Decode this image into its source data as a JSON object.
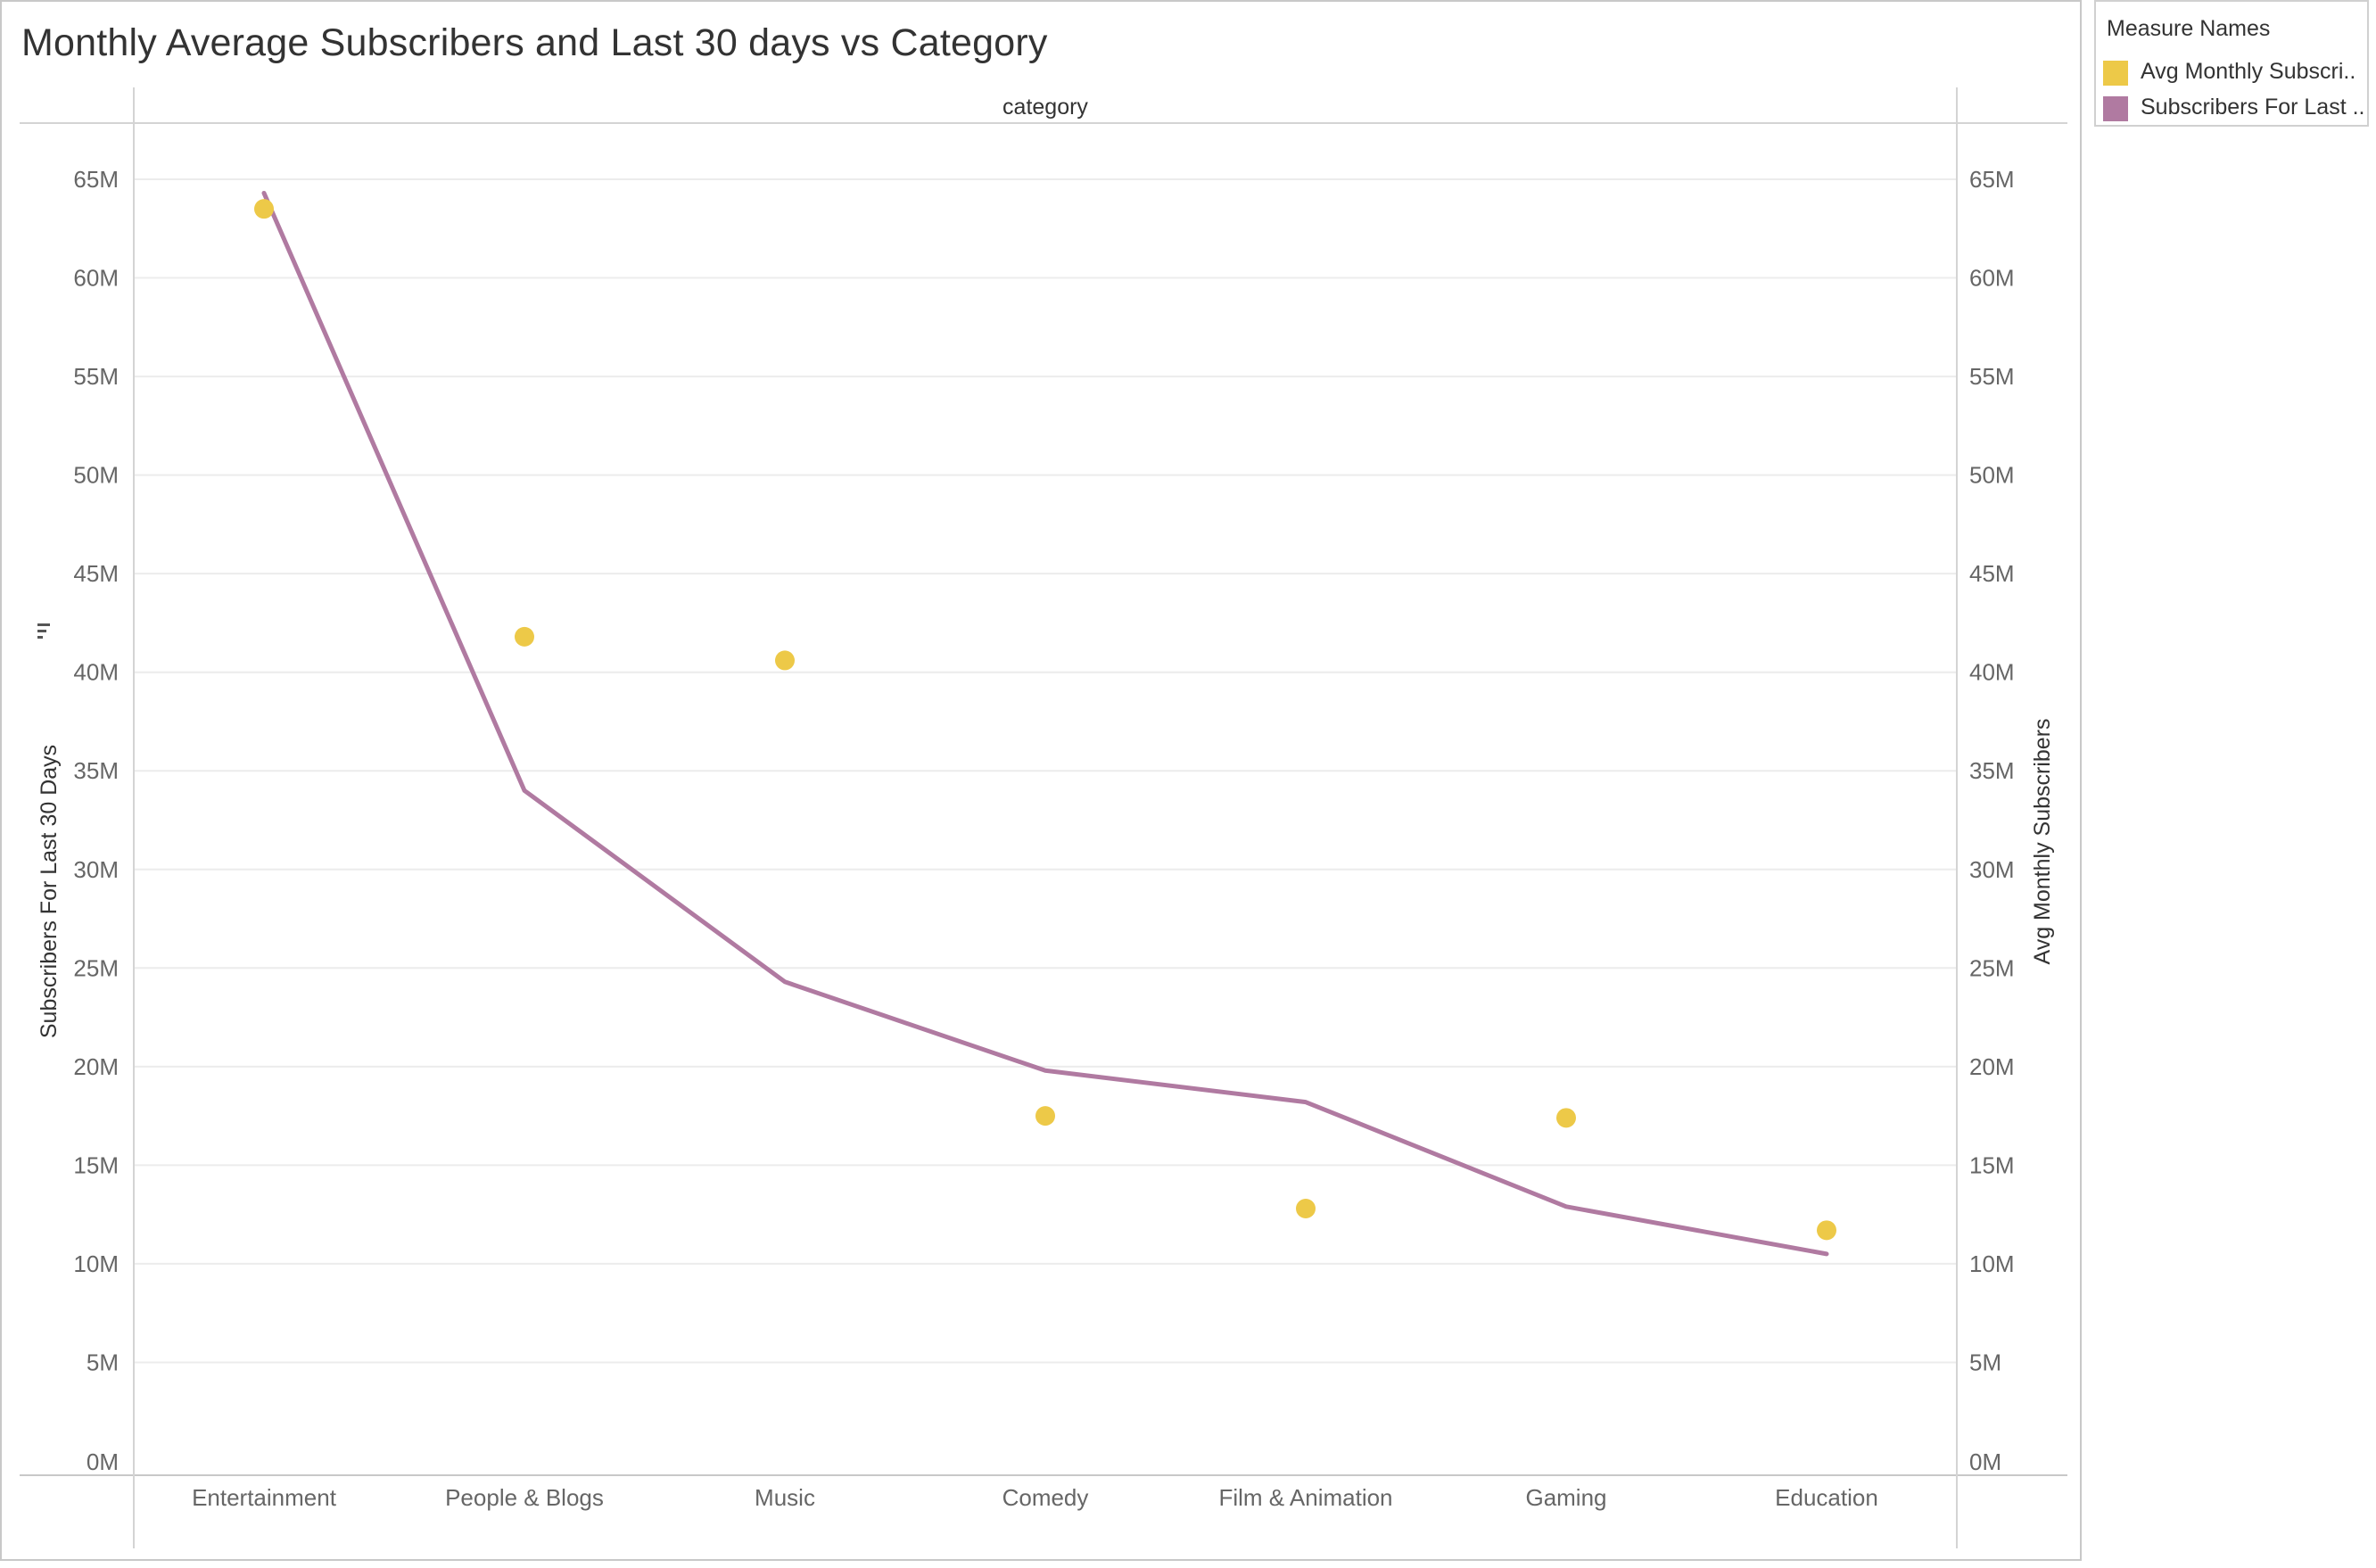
{
  "chart_data": {
    "type": "line",
    "title": "Monthly Average Subscribers and Last 30 days vs Category",
    "column_header": "category",
    "categories": [
      "Entertainment",
      "People & Blogs",
      "Music",
      "Comedy",
      "Film & Animation",
      "Gaming",
      "Education"
    ],
    "y_left": {
      "label": "Subscribers For Last 30 Days",
      "ticks": [
        "0M",
        "5M",
        "10M",
        "15M",
        "20M",
        "25M",
        "30M",
        "35M",
        "40M",
        "45M",
        "50M",
        "55M",
        "60M",
        "65M"
      ],
      "ylim": [
        0,
        65
      ]
    },
    "y_right": {
      "label": "Avg Monthly Subscribers",
      "ticks": [
        "0M",
        "5M",
        "10M",
        "15M",
        "20M",
        "25M",
        "30M",
        "35M",
        "40M",
        "45M",
        "50M",
        "55M",
        "60M",
        "65M"
      ],
      "ylim": [
        0,
        65
      ]
    },
    "grid": true,
    "series": [
      {
        "name": "Subscribers For Last ..",
        "type": "line",
        "axis": "left",
        "unit": "M",
        "color": "#b07aa1",
        "values": [
          64.3,
          34.0,
          24.3,
          19.8,
          18.2,
          12.9,
          10.5
        ]
      },
      {
        "name": "Avg Monthly Subscri..",
        "type": "scatter",
        "axis": "right",
        "unit": "M",
        "color": "#edc948",
        "values": [
          63.5,
          41.8,
          40.6,
          17.5,
          12.8,
          17.4,
          11.7
        ]
      }
    ]
  },
  "legend": {
    "title": "Measure Names",
    "placement": "top-right",
    "items": [
      {
        "label": "Avg Monthly Subscri..",
        "color": "#edc948"
      },
      {
        "label": "Subscribers For Last ..",
        "color": "#b07aa1"
      }
    ]
  },
  "sort_icon": "sort-descending-icon"
}
